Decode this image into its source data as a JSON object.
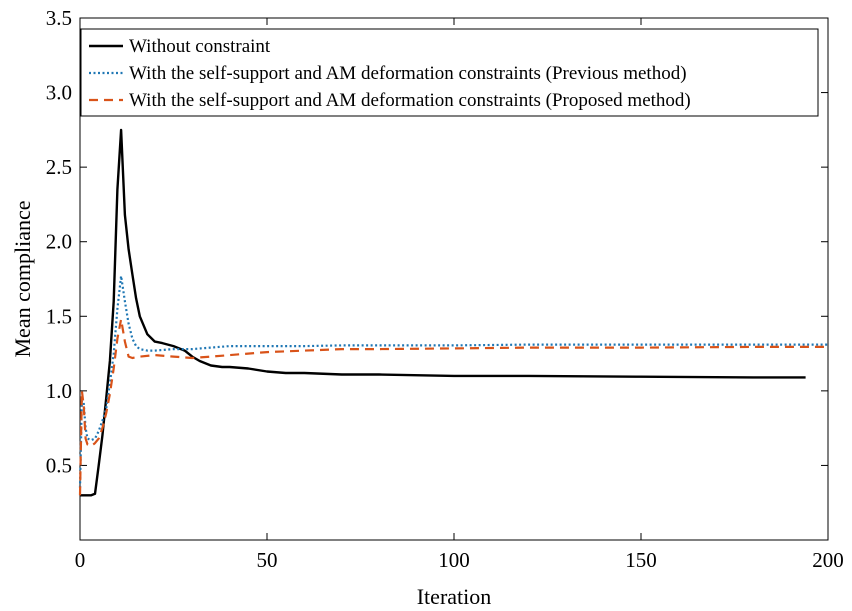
{
  "chart_data": {
    "type": "line",
    "title": "",
    "xlabel": "Iteration",
    "ylabel": "Mean compliance",
    "xlim": [
      0,
      200
    ],
    "ylim": [
      0,
      3.5
    ],
    "xticks": [
      0,
      50,
      100,
      150,
      200
    ],
    "yticks": [
      0.5,
      1.0,
      1.5,
      2.0,
      2.5,
      3.0,
      3.5
    ],
    "xtick_labels": [
      "0",
      "50",
      "100",
      "150",
      "200"
    ],
    "ytick_labels": [
      "0.5",
      "1.0",
      "1.5",
      "2.0",
      "2.5",
      "3.0",
      "3.5"
    ],
    "grid": false,
    "legend_position": "top",
    "series": [
      {
        "name": "Without constraint",
        "color": "#000000",
        "style": "solid",
        "x": [
          0,
          1,
          2,
          3,
          4,
          5,
          6,
          7,
          8,
          9,
          10,
          11,
          12,
          13,
          14,
          15,
          16,
          18,
          20,
          22,
          25,
          28,
          30,
          32,
          35,
          38,
          40,
          45,
          50,
          55,
          60,
          70,
          80,
          100,
          120,
          150,
          180,
          194
        ],
        "y": [
          0.3,
          0.3,
          0.3,
          0.3,
          0.31,
          0.5,
          0.7,
          0.95,
          1.2,
          1.6,
          2.35,
          2.75,
          2.18,
          1.95,
          1.78,
          1.62,
          1.5,
          1.38,
          1.33,
          1.32,
          1.3,
          1.27,
          1.23,
          1.2,
          1.17,
          1.16,
          1.16,
          1.15,
          1.13,
          1.12,
          1.12,
          1.11,
          1.11,
          1.1,
          1.1,
          1.095,
          1.09,
          1.09
        ]
      },
      {
        "name": "With the self-support and AM deformation constraints (Previous method)",
        "color": "#1f77b4",
        "style": "dotted",
        "x": [
          0,
          0.5,
          1,
          1.5,
          2,
          3,
          4,
          5,
          6,
          7,
          8,
          9,
          10,
          11,
          12,
          13,
          14,
          15,
          16,
          18,
          20,
          25,
          30,
          35,
          40,
          45,
          50,
          60,
          70,
          80,
          100,
          120,
          150,
          180,
          200
        ],
        "y": [
          0.35,
          0.95,
          0.92,
          0.75,
          0.68,
          0.67,
          0.68,
          0.73,
          0.8,
          0.88,
          1.05,
          1.25,
          1.55,
          1.77,
          1.6,
          1.45,
          1.35,
          1.3,
          1.28,
          1.27,
          1.27,
          1.28,
          1.28,
          1.29,
          1.3,
          1.3,
          1.3,
          1.3,
          1.305,
          1.305,
          1.305,
          1.31,
          1.31,
          1.31,
          1.31
        ]
      },
      {
        "name": "With the self-support and AM deformation constraints (Proposed method)",
        "color": "#d95319",
        "style": "dashed",
        "x": [
          0,
          0.5,
          1,
          1.5,
          2,
          3,
          4,
          5,
          6,
          7,
          8,
          9,
          10,
          11,
          12,
          13,
          14,
          16,
          20,
          25,
          30,
          35,
          40,
          50,
          60,
          70,
          80,
          100,
          120,
          150,
          180,
          200
        ],
        "y": [
          0.3,
          1.0,
          0.9,
          0.68,
          0.64,
          0.63,
          0.65,
          0.68,
          0.75,
          0.85,
          0.98,
          1.15,
          1.35,
          1.48,
          1.33,
          1.23,
          1.22,
          1.23,
          1.24,
          1.23,
          1.22,
          1.23,
          1.24,
          1.26,
          1.27,
          1.28,
          1.28,
          1.285,
          1.29,
          1.29,
          1.295,
          1.295
        ]
      }
    ]
  }
}
